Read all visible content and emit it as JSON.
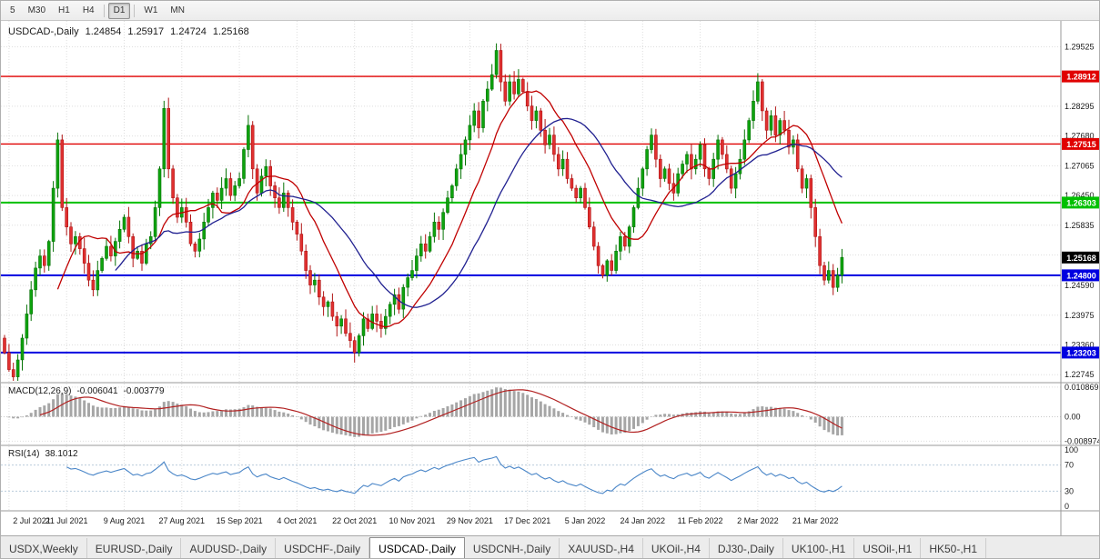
{
  "toolbar": {
    "timeframes": [
      {
        "label": "5",
        "active": false
      },
      {
        "label": "M30",
        "active": false
      },
      {
        "label": "H1",
        "active": false
      },
      {
        "label": "H4",
        "active": false
      },
      {
        "label": "D1",
        "active": true
      },
      {
        "label": "W1",
        "active": false
      },
      {
        "label": "MN",
        "active": false
      }
    ]
  },
  "chart_data": {
    "type": "candlestick",
    "header": {
      "symbol_period": "USDCAD-,Daily",
      "open": "1.24854",
      "high": "1.25917",
      "low": "1.24724",
      "close": "1.25168"
    },
    "ylim": [
      1.2258,
      1.3006
    ],
    "closes": [
      1.232,
      1.2285,
      1.227,
      1.2305,
      1.235,
      1.24,
      1.245,
      1.2495,
      1.252,
      1.25,
      1.255,
      1.266,
      1.276,
      1.262,
      1.258,
      1.2545,
      1.256,
      1.2535,
      1.2505,
      1.247,
      1.245,
      1.249,
      1.2515,
      1.254,
      1.252,
      1.255,
      1.2575,
      1.26,
      1.256,
      1.2515,
      1.253,
      1.2505,
      1.2545,
      1.256,
      1.262,
      1.27,
      1.2825,
      1.27,
      1.264,
      1.26,
      1.262,
      1.259,
      1.2545,
      1.253,
      1.2555,
      1.259,
      1.262,
      1.265,
      1.2635,
      1.266,
      1.268,
      1.2645,
      1.2665,
      1.268,
      1.274,
      1.279,
      1.27,
      1.265,
      1.2685,
      1.2705,
      1.2665,
      1.264,
      1.262,
      1.265,
      1.262,
      1.259,
      1.2565,
      1.253,
      1.249,
      1.246,
      1.247,
      1.2435,
      1.2415,
      1.2425,
      1.2395,
      1.2375,
      1.239,
      1.236,
      1.2345,
      1.232,
      1.2355,
      1.239,
      1.237,
      1.24,
      1.2385,
      1.237,
      1.2395,
      1.242,
      1.244,
      1.241,
      1.2455,
      1.2475,
      1.249,
      1.252,
      1.2545,
      1.253,
      1.256,
      1.259,
      1.2575,
      1.261,
      1.264,
      1.2665,
      1.27,
      1.273,
      1.276,
      1.279,
      1.282,
      1.2785,
      1.284,
      1.2865,
      1.2895,
      1.2945,
      1.288,
      1.284,
      1.288,
      1.2855,
      1.2885,
      1.286,
      1.283,
      1.28,
      1.282,
      1.278,
      1.275,
      1.277,
      1.273,
      1.27,
      1.272,
      1.268,
      1.266,
      1.264,
      1.266,
      1.262,
      1.258,
      1.254,
      1.25,
      1.248,
      1.251,
      1.249,
      1.253,
      1.256,
      1.254,
      1.258,
      1.262,
      1.266,
      1.27,
      1.274,
      1.277,
      1.272,
      1.268,
      1.27,
      1.267,
      1.265,
      1.269,
      1.271,
      1.273,
      1.27,
      1.272,
      1.275,
      1.27,
      1.268,
      1.272,
      1.276,
      1.273,
      1.27,
      1.266,
      1.269,
      1.272,
      1.276,
      1.28,
      1.284,
      1.288,
      1.282,
      1.278,
      1.281,
      1.277,
      1.28,
      1.278,
      1.2745,
      1.276,
      1.27,
      1.266,
      1.268,
      1.262,
      1.256,
      1.25,
      1.247,
      1.249,
      1.2455,
      1.248,
      1.2517
    ],
    "x_labels": [
      "2 Jul 2021",
      "21 Jul 2021",
      "9 Aug 2021",
      "27 Aug 2021",
      "15 Sep 2021",
      "4 Oct 2021",
      "22 Oct 2021",
      "10 Nov 2021",
      "29 Nov 2021",
      "17 Dec 2021",
      "5 Jan 2022",
      "24 Jan 2022",
      "11 Feb 2022",
      "2 Mar 2022",
      "21 Mar 2022"
    ],
    "y_ticks": [
      {
        "price": 1.29525,
        "label": "1.29525"
      },
      {
        "price": 1.2891,
        "label": ""
      },
      {
        "price": 1.28295,
        "label": "1.28295"
      },
      {
        "price": 1.2768,
        "label": "1.27680"
      },
      {
        "price": 1.27065,
        "label": "1.27065"
      },
      {
        "price": 1.2645,
        "label": "1.26450"
      },
      {
        "price": 1.25835,
        "label": "1.25835"
      },
      {
        "price": 1.2522,
        "label": ""
      },
      {
        "price": 1.2459,
        "label": "1.24590"
      },
      {
        "price": 1.23975,
        "label": "1.23975"
      },
      {
        "price": 1.2336,
        "label": "1.23360"
      },
      {
        "price": 1.22745,
        "label": "1.22745"
      }
    ],
    "hlines": [
      {
        "price": 1.28912,
        "label": "1.28912",
        "color": "#e00000",
        "width": 1.4
      },
      {
        "price": 1.27515,
        "label": "1.27515",
        "color": "#e00000",
        "width": 1.4
      },
      {
        "price": 1.26303,
        "label": "1.26303",
        "color": "#00c000",
        "width": 2
      },
      {
        "price": 1.248,
        "label": "1.24800",
        "color": "#0000e0",
        "width": 2
      },
      {
        "price": 1.23203,
        "label": "1.23203",
        "color": "#0000e0",
        "width": 2
      }
    ],
    "current_price": {
      "value": 1.25168,
      "label": "1.25168",
      "color": "#000000"
    },
    "moving_averages": [
      {
        "type": "sma",
        "period": 13,
        "color": "#c00000"
      },
      {
        "type": "sma",
        "period": 26,
        "color": "#202090"
      }
    ],
    "colors": {
      "up_fill": "#0ea30e",
      "up_stroke": "#067306",
      "down_fill": "#e03030",
      "down_stroke": "#b01515",
      "grid": "#dedede",
      "separator": "#9a9a9a",
      "axis_text": "#1a1a1a",
      "macd_hist": "#a6a6a6",
      "macd_signal": "#b22222",
      "rsi_line": "#4a86c8",
      "rsi_levels": "#b9cbdc"
    },
    "indicators": {
      "macd": {
        "name": "MACD(12,26,9)",
        "value": "-0.006041",
        "signal_value": "-0.003779",
        "fast": 12,
        "slow": 26,
        "signal_period": 9,
        "ylim": [
          -0.0105,
          0.0125
        ],
        "axis": [
          {
            "v": 0.010869,
            "label": "0.010869"
          },
          {
            "v": 0,
            "label": "0.00"
          },
          {
            "v": -0.008974,
            "label": "-0.008974"
          }
        ]
      },
      "rsi": {
        "name": "RSI(14)",
        "value": "38.1012",
        "period": 14,
        "levels": [
          70,
          30
        ],
        "axis": [
          {
            "v": 100,
            "label": "100"
          },
          {
            "v": 70,
            "label": "70"
          },
          {
            "v": 30,
            "label": "30"
          },
          {
            "v": 0,
            "label": "0"
          }
        ]
      }
    }
  },
  "tabs": {
    "items": [
      {
        "label": "USDX,Weekly",
        "active": false
      },
      {
        "label": "EURUSD-,Daily",
        "active": false
      },
      {
        "label": "AUDUSD-,Daily",
        "active": false
      },
      {
        "label": "USDCHF-,Daily",
        "active": false
      },
      {
        "label": "USDCAD-,Daily",
        "active": true
      },
      {
        "label": "USDCNH-,Daily",
        "active": false
      },
      {
        "label": "XAUUSD-,H4",
        "active": false
      },
      {
        "label": "UKOil-,H4",
        "active": false
      },
      {
        "label": "DJ30-,Daily",
        "active": false
      },
      {
        "label": "UK100-,H1",
        "active": false
      },
      {
        "label": "USOil-,H1",
        "active": false
      },
      {
        "label": "HK50-,H1",
        "active": false
      }
    ]
  }
}
